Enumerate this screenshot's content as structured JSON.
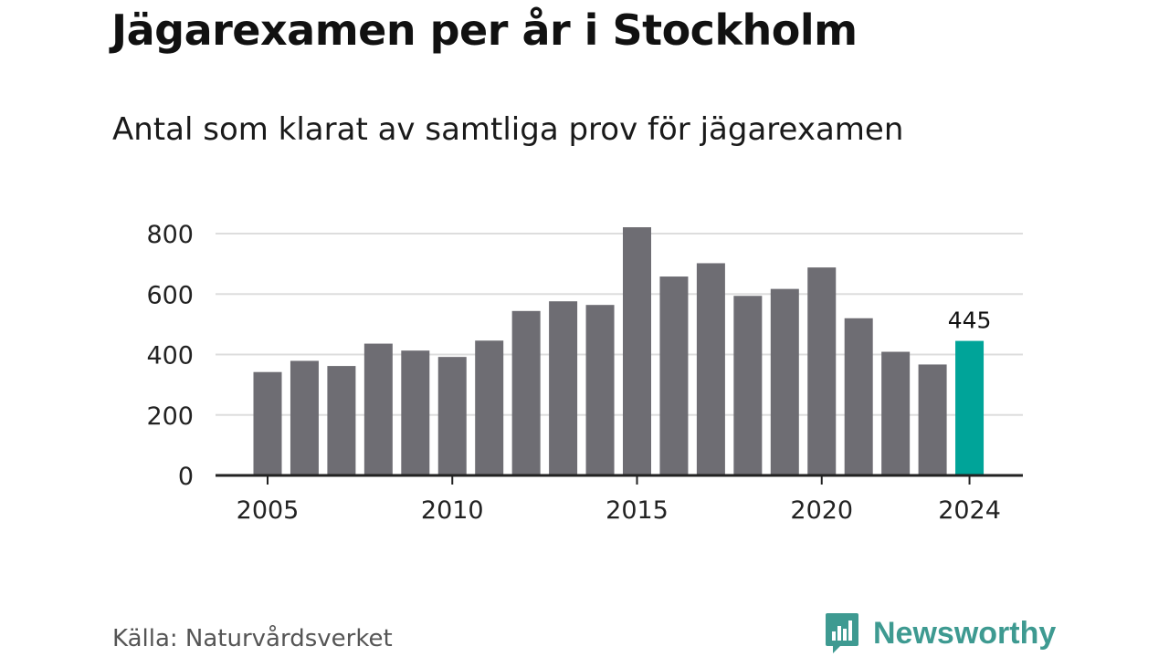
{
  "title": "Jägarexamen per år i Stockholm",
  "subtitle": "Antal som klarat av samtliga prov för jägarexamen",
  "source": "Källa: Naturvårdsverket",
  "brand": {
    "name": "Newsworthy",
    "icon": "newsworthy-logo-icon",
    "color": "#3e9a91"
  },
  "colors": {
    "bar": "#6e6d73",
    "highlight": "#00a499",
    "grid": "#dddddd",
    "axis": "#222222"
  },
  "chart_data": {
    "type": "bar",
    "title": "Jägarexamen per år i Stockholm",
    "subtitle": "Antal som klarat av samtliga prov för jägarexamen",
    "xlabel": "",
    "ylabel": "",
    "categories": [
      2005,
      2006,
      2007,
      2008,
      2009,
      2010,
      2011,
      2012,
      2013,
      2014,
      2015,
      2016,
      2017,
      2018,
      2019,
      2020,
      2021,
      2022,
      2023,
      2024
    ],
    "values": [
      342,
      379,
      362,
      436,
      413,
      392,
      446,
      544,
      576,
      564,
      821,
      658,
      702,
      594,
      617,
      688,
      520,
      409,
      367,
      445
    ],
    "ylim": [
      0,
      850
    ],
    "yticks": [
      0,
      200,
      400,
      600,
      800
    ],
    "xticks": [
      2005,
      2010,
      2015,
      2020,
      2024
    ],
    "highlight": {
      "category": 2024,
      "label": "445"
    },
    "grid": "horizontal",
    "legend": "none"
  }
}
